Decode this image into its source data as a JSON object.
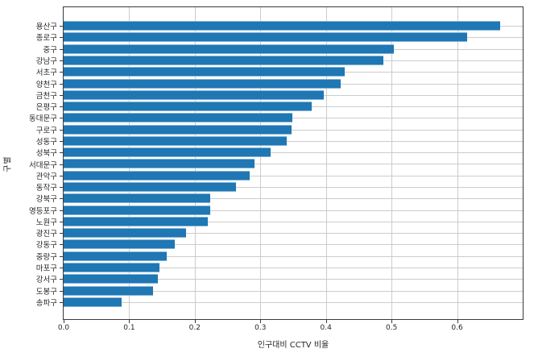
{
  "chart_data": {
    "type": "bar",
    "orientation": "horizontal",
    "title": "",
    "xlabel": "인구대비 CCTV 비율",
    "ylabel": "구별",
    "categories": [
      "용산구",
      "종로구",
      "중구",
      "강남구",
      "서초구",
      "양천구",
      "금천구",
      "은평구",
      "동대문구",
      "구로구",
      "성동구",
      "성북구",
      "서대문구",
      "관악구",
      "동작구",
      "강북구",
      "영등포구",
      "노원구",
      "광진구",
      "강동구",
      "중랑구",
      "마포구",
      "강서구",
      "도봉구",
      "송파구"
    ],
    "values": [
      0.665,
      0.615,
      0.504,
      0.487,
      0.428,
      0.423,
      0.397,
      0.378,
      0.349,
      0.347,
      0.34,
      0.316,
      0.291,
      0.284,
      0.263,
      0.224,
      0.223,
      0.22,
      0.187,
      0.169,
      0.157,
      0.146,
      0.144,
      0.136,
      0.089
    ],
    "xticks": [
      "0.0",
      "0.1",
      "0.2",
      "0.3",
      "0.4",
      "0.5",
      "0.6"
    ],
    "xtick_values": [
      0.0,
      0.1,
      0.2,
      0.3,
      0.4,
      0.5,
      0.6
    ],
    "xlim": [
      0.0,
      0.7
    ],
    "grid": true,
    "legend": null,
    "bar_color": "#1f77b4",
    "grid_color": "#cccccc"
  }
}
